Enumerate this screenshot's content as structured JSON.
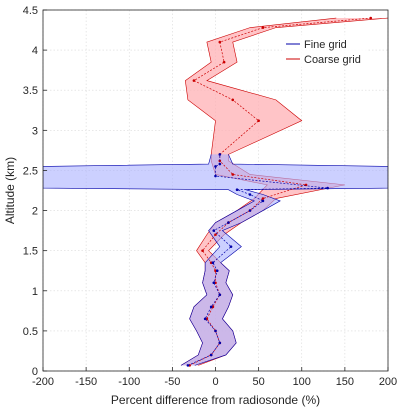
{
  "chart_data": {
    "type": "line",
    "title": "",
    "xlabel": "Percent difference from radiosonde (%)",
    "ylabel": "Altitude (km)",
    "xlim": [
      -200,
      200
    ],
    "ylim": [
      0,
      4.5
    ],
    "x_ticks": [
      -200,
      -150,
      -100,
      -50,
      0,
      50,
      100,
      150,
      200
    ],
    "y_ticks": [
      0,
      0.5,
      1,
      1.5,
      2,
      2.5,
      3,
      3.5,
      4,
      4.5
    ],
    "grid": true,
    "legend_position": "top-right",
    "series": [
      {
        "name": "Fine grid",
        "color": "#0000aa",
        "fill": "#aab0ff",
        "points": [
          {
            "y": 0.07,
            "x": -32,
            "lo": -40,
            "hi": -24
          },
          {
            "y": 0.2,
            "x": -5,
            "lo": -20,
            "hi": 12
          },
          {
            "y": 0.35,
            "x": 5,
            "lo": -15,
            "hi": 24
          },
          {
            "y": 0.5,
            "x": 0,
            "lo": -22,
            "hi": 20
          },
          {
            "y": 0.65,
            "x": -12,
            "lo": -30,
            "hi": 8
          },
          {
            "y": 0.8,
            "x": -5,
            "lo": -25,
            "hi": 15
          },
          {
            "y": 0.95,
            "x": 5,
            "lo": -10,
            "hi": 20
          },
          {
            "y": 1.1,
            "x": -2,
            "lo": -15,
            "hi": 12
          },
          {
            "y": 1.25,
            "x": 2,
            "lo": -12,
            "hi": 16
          },
          {
            "y": 1.35,
            "x": -3,
            "lo": -12,
            "hi": 6
          },
          {
            "y": 1.55,
            "x": 18,
            "lo": 5,
            "hi": 30
          },
          {
            "y": 1.75,
            "x": -2,
            "lo": -8,
            "hi": 8
          },
          {
            "y": 1.85,
            "x": 15,
            "lo": 0,
            "hi": 30
          },
          {
            "y": 2.0,
            "x": 40,
            "lo": 25,
            "hi": 55
          },
          {
            "y": 2.12,
            "x": 55,
            "lo": 45,
            "hi": 75
          },
          {
            "y": 2.2,
            "x": 40,
            "lo": 25,
            "hi": 55
          },
          {
            "y": 2.26,
            "x": 25,
            "lo": 15,
            "hi": 35
          },
          {
            "y": 2.28,
            "x": 130,
            "lo": -200,
            "hi": 200
          },
          {
            "y": 2.43,
            "x": 0,
            "lo": -200,
            "hi": 200
          },
          {
            "y": 2.55,
            "x": 0,
            "lo": -200,
            "hi": 200
          },
          {
            "y": 2.58,
            "x": 5,
            "lo": -8,
            "hi": 20
          },
          {
            "y": 2.7,
            "x": 5,
            "lo": -5,
            "hi": 15
          }
        ]
      },
      {
        "name": "Coarse grid",
        "color": "#cc0000",
        "fill": "#ffb0b4",
        "points": [
          {
            "y": 0.07,
            "x": -30,
            "lo": -40,
            "hi": -20
          },
          {
            "y": 0.2,
            "x": -5,
            "lo": -20,
            "hi": 12
          },
          {
            "y": 0.35,
            "x": 5,
            "lo": -15,
            "hi": 24
          },
          {
            "y": 0.5,
            "x": 0,
            "lo": -22,
            "hi": 20
          },
          {
            "y": 0.65,
            "x": -10,
            "lo": -30,
            "hi": 8
          },
          {
            "y": 0.8,
            "x": -3,
            "lo": -25,
            "hi": 15
          },
          {
            "y": 0.95,
            "x": 5,
            "lo": -10,
            "hi": 20
          },
          {
            "y": 1.1,
            "x": 0,
            "lo": -15,
            "hi": 12
          },
          {
            "y": 1.25,
            "x": 0,
            "lo": -12,
            "hi": 16
          },
          {
            "y": 1.35,
            "x": -5,
            "lo": -12,
            "hi": 6
          },
          {
            "y": 1.5,
            "x": -15,
            "lo": -22,
            "hi": -8
          },
          {
            "y": 1.7,
            "x": 0,
            "lo": -10,
            "hi": 10
          },
          {
            "y": 1.85,
            "x": 15,
            "lo": 0,
            "hi": 30
          },
          {
            "y": 2.0,
            "x": 40,
            "lo": 25,
            "hi": 55
          },
          {
            "y": 2.15,
            "x": 55,
            "lo": 45,
            "hi": 70
          },
          {
            "y": 2.32,
            "x": 105,
            "lo": 60,
            "hi": 150
          },
          {
            "y": 2.45,
            "x": 20,
            "lo": 0,
            "hi": 40
          },
          {
            "y": 2.62,
            "x": 5,
            "lo": -5,
            "hi": 15
          },
          {
            "y": 2.7,
            "x": 5,
            "lo": -5,
            "hi": 15
          },
          {
            "y": 3.12,
            "x": 50,
            "lo": 0,
            "hi": 100
          },
          {
            "y": 3.38,
            "x": 20,
            "lo": -32,
            "hi": 70
          },
          {
            "y": 3.62,
            "x": -25,
            "lo": -35,
            "hi": -10
          },
          {
            "y": 3.85,
            "x": 10,
            "lo": -5,
            "hi": 25
          },
          {
            "y": 4.1,
            "x": 5,
            "lo": -10,
            "hi": 20
          },
          {
            "y": 4.28,
            "x": 55,
            "lo": 40,
            "hi": 70
          },
          {
            "y": 4.4,
            "x": 180,
            "lo": 140,
            "hi": 200
          }
        ]
      }
    ]
  }
}
